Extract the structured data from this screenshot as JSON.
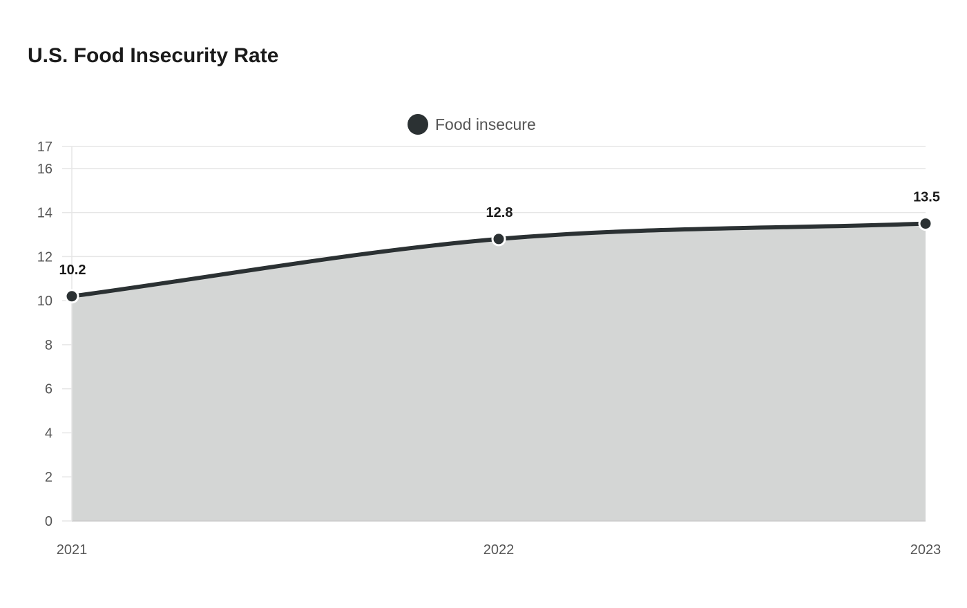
{
  "chart_data": {
    "type": "area",
    "title": "U.S. Food Insecurity Rate",
    "categories": [
      "2021",
      "2022",
      "2023"
    ],
    "series": [
      {
        "name": "Food insecure",
        "values": [
          10.2,
          12.8,
          13.5
        ]
      }
    ],
    "ylim": [
      0,
      17
    ],
    "yticks": [
      0,
      2,
      4,
      6,
      8,
      10,
      12,
      14,
      16,
      17
    ],
    "grid": true,
    "legend": "top-center",
    "colors": {
      "line": "#2b3133",
      "fill": "#d4d6d5",
      "marker": "#2b3133",
      "marker_stroke": "#ffffff"
    }
  }
}
